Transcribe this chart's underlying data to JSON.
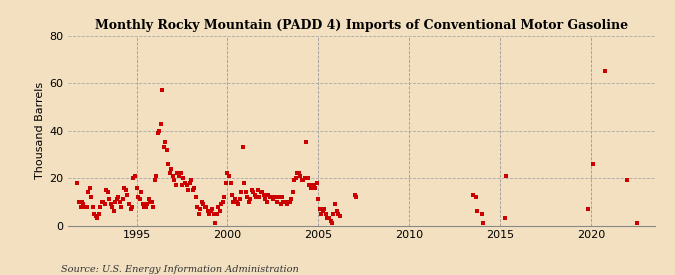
{
  "title": "Monthly Rocky Mountain (PADD 4) Imports of Conventional Motor Gasoline",
  "ylabel": "Thousand Barrels",
  "source": "Source: U.S. Energy Information Administration",
  "background_color": "#f2e0c0",
  "plot_bg_color": "#f2e0c0",
  "marker_color": "#cc0000",
  "marker_size": 12,
  "ylim": [
    0,
    80
  ],
  "yticks": [
    0,
    20,
    40,
    60,
    80
  ],
  "xlim_start": 1991.2,
  "xlim_end": 2023.5,
  "xticks": [
    1995,
    2000,
    2005,
    2010,
    2015,
    2020
  ],
  "data": [
    [
      1991.75,
      18
    ],
    [
      1991.83,
      10
    ],
    [
      1991.92,
      8
    ],
    [
      1992.0,
      10
    ],
    [
      1992.08,
      9
    ],
    [
      1992.17,
      8
    ],
    [
      1992.25,
      8
    ],
    [
      1992.33,
      14
    ],
    [
      1992.42,
      16
    ],
    [
      1992.5,
      12
    ],
    [
      1992.58,
      8
    ],
    [
      1992.67,
      5
    ],
    [
      1992.75,
      4
    ],
    [
      1992.83,
      3
    ],
    [
      1992.92,
      5
    ],
    [
      1993.0,
      8
    ],
    [
      1993.08,
      10
    ],
    [
      1993.17,
      10
    ],
    [
      1993.25,
      9
    ],
    [
      1993.33,
      15
    ],
    [
      1993.42,
      14
    ],
    [
      1993.5,
      11
    ],
    [
      1993.58,
      9
    ],
    [
      1993.67,
      8
    ],
    [
      1993.75,
      6
    ],
    [
      1993.83,
      10
    ],
    [
      1993.92,
      11
    ],
    [
      1994.0,
      12
    ],
    [
      1994.08,
      10
    ],
    [
      1994.17,
      8
    ],
    [
      1994.25,
      11
    ],
    [
      1994.33,
      16
    ],
    [
      1994.42,
      15
    ],
    [
      1994.5,
      13
    ],
    [
      1994.58,
      9
    ],
    [
      1994.67,
      7
    ],
    [
      1994.75,
      8
    ],
    [
      1994.83,
      20
    ],
    [
      1994.92,
      21
    ],
    [
      1995.0,
      16
    ],
    [
      1995.08,
      12
    ],
    [
      1995.17,
      11
    ],
    [
      1995.25,
      14
    ],
    [
      1995.33,
      9
    ],
    [
      1995.42,
      8
    ],
    [
      1995.5,
      8
    ],
    [
      1995.58,
      9
    ],
    [
      1995.67,
      11
    ],
    [
      1995.75,
      10
    ],
    [
      1995.83,
      10
    ],
    [
      1995.92,
      8
    ],
    [
      1996.0,
      19
    ],
    [
      1996.08,
      21
    ],
    [
      1996.17,
      39
    ],
    [
      1996.25,
      40
    ],
    [
      1996.33,
      43
    ],
    [
      1996.42,
      57
    ],
    [
      1996.5,
      33
    ],
    [
      1996.58,
      35
    ],
    [
      1996.67,
      32
    ],
    [
      1996.75,
      26
    ],
    [
      1996.83,
      22
    ],
    [
      1996.92,
      24
    ],
    [
      1997.0,
      21
    ],
    [
      1997.08,
      19
    ],
    [
      1997.17,
      17
    ],
    [
      1997.25,
      22
    ],
    [
      1997.33,
      21
    ],
    [
      1997.42,
      22
    ],
    [
      1997.5,
      17
    ],
    [
      1997.58,
      20
    ],
    [
      1997.67,
      18
    ],
    [
      1997.75,
      17
    ],
    [
      1997.83,
      15
    ],
    [
      1997.92,
      18
    ],
    [
      1998.0,
      19
    ],
    [
      1998.08,
      15
    ],
    [
      1998.17,
      16
    ],
    [
      1998.25,
      12
    ],
    [
      1998.33,
      8
    ],
    [
      1998.42,
      5
    ],
    [
      1998.5,
      7
    ],
    [
      1998.58,
      10
    ],
    [
      1998.67,
      9
    ],
    [
      1998.75,
      8
    ],
    [
      1998.83,
      8
    ],
    [
      1998.92,
      6
    ],
    [
      1999.0,
      5
    ],
    [
      1999.08,
      6
    ],
    [
      1999.17,
      7
    ],
    [
      1999.25,
      5
    ],
    [
      1999.33,
      1
    ],
    [
      1999.42,
      5
    ],
    [
      1999.5,
      8
    ],
    [
      1999.58,
      6
    ],
    [
      1999.67,
      9
    ],
    [
      1999.75,
      10
    ],
    [
      1999.83,
      12
    ],
    [
      1999.92,
      18
    ],
    [
      2000.0,
      22
    ],
    [
      2000.08,
      21
    ],
    [
      2000.17,
      18
    ],
    [
      2000.25,
      13
    ],
    [
      2000.33,
      10
    ],
    [
      2000.42,
      11
    ],
    [
      2000.5,
      10
    ],
    [
      2000.58,
      9
    ],
    [
      2000.67,
      11
    ],
    [
      2000.75,
      14
    ],
    [
      2000.83,
      33
    ],
    [
      2000.92,
      18
    ],
    [
      2001.0,
      14
    ],
    [
      2001.08,
      12
    ],
    [
      2001.17,
      10
    ],
    [
      2001.25,
      11
    ],
    [
      2001.33,
      15
    ],
    [
      2001.42,
      14
    ],
    [
      2001.5,
      13
    ],
    [
      2001.58,
      12
    ],
    [
      2001.67,
      15
    ],
    [
      2001.75,
      12
    ],
    [
      2001.83,
      14
    ],
    [
      2001.92,
      14
    ],
    [
      2002.0,
      13
    ],
    [
      2002.08,
      11
    ],
    [
      2002.17,
      10
    ],
    [
      2002.25,
      13
    ],
    [
      2002.33,
      12
    ],
    [
      2002.42,
      12
    ],
    [
      2002.5,
      11
    ],
    [
      2002.58,
      12
    ],
    [
      2002.67,
      12
    ],
    [
      2002.75,
      10
    ],
    [
      2002.83,
      12
    ],
    [
      2002.92,
      9
    ],
    [
      2003.0,
      12
    ],
    [
      2003.08,
      10
    ],
    [
      2003.17,
      10
    ],
    [
      2003.25,
      9
    ],
    [
      2003.33,
      10
    ],
    [
      2003.42,
      10
    ],
    [
      2003.5,
      11
    ],
    [
      2003.58,
      14
    ],
    [
      2003.67,
      19
    ],
    [
      2003.75,
      20
    ],
    [
      2003.83,
      22
    ],
    [
      2003.92,
      22
    ],
    [
      2004.0,
      21
    ],
    [
      2004.08,
      19
    ],
    [
      2004.17,
      19
    ],
    [
      2004.25,
      20
    ],
    [
      2004.33,
      35
    ],
    [
      2004.42,
      20
    ],
    [
      2004.5,
      17
    ],
    [
      2004.58,
      16
    ],
    [
      2004.67,
      17
    ],
    [
      2004.75,
      17
    ],
    [
      2004.83,
      16
    ],
    [
      2004.92,
      18
    ],
    [
      2005.0,
      11
    ],
    [
      2005.08,
      7
    ],
    [
      2005.17,
      5
    ],
    [
      2005.25,
      6
    ],
    [
      2005.33,
      7
    ],
    [
      2005.42,
      5
    ],
    [
      2005.5,
      3
    ],
    [
      2005.58,
      3
    ],
    [
      2005.67,
      2
    ],
    [
      2005.75,
      1
    ],
    [
      2005.83,
      5
    ],
    [
      2005.92,
      9
    ],
    [
      2006.0,
      6
    ],
    [
      2006.08,
      5
    ],
    [
      2006.17,
      4
    ],
    [
      2007.0,
      13
    ],
    [
      2007.08,
      12
    ],
    [
      2013.5,
      13
    ],
    [
      2013.67,
      12
    ],
    [
      2013.75,
      6
    ],
    [
      2014.0,
      5
    ],
    [
      2014.08,
      1
    ],
    [
      2015.25,
      3
    ],
    [
      2015.33,
      21
    ],
    [
      2019.83,
      7
    ],
    [
      2020.08,
      26
    ],
    [
      2020.75,
      65
    ],
    [
      2022.0,
      19
    ],
    [
      2022.5,
      1
    ]
  ]
}
